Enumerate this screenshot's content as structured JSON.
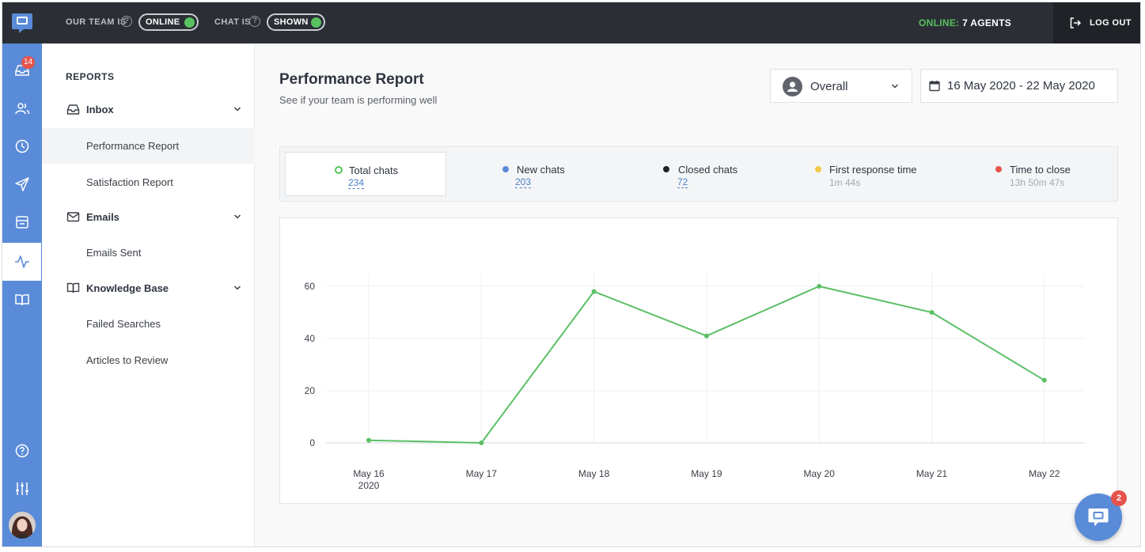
{
  "topbar": {
    "team_label": "OUR TEAM IS",
    "team_status": "ONLINE",
    "chat_label": "CHAT IS",
    "chat_status": "SHOWN",
    "online_key": "ONLINE:",
    "online_value": "7 AGENTS",
    "logout_label": "LOG OUT"
  },
  "rail": {
    "inbox_badge": "14",
    "items": [
      "inbox-icon",
      "users-icon",
      "clock-icon",
      "send-icon",
      "ticket-icon",
      "activity-icon",
      "book-icon",
      "help-icon",
      "sliders-icon"
    ],
    "active": "activity-icon"
  },
  "sidebar": {
    "title": "REPORTS",
    "groups": [
      {
        "label": "Inbox",
        "icon": "inbox-icon",
        "items": [
          "Performance Report",
          "Satisfaction Report"
        ]
      },
      {
        "label": "Emails",
        "icon": "mail-icon",
        "items": [
          "Emails Sent"
        ]
      },
      {
        "label": "Knowledge Base",
        "icon": "book-icon",
        "items": [
          "Failed Searches",
          "Articles to Review"
        ]
      }
    ],
    "active_item": "Performance Report"
  },
  "main": {
    "title": "Performance Report",
    "subtitle": "See if your team is performing well",
    "agent_select": "Overall",
    "date_range": "16 May 2020 - 22 May 2020"
  },
  "metrics": [
    {
      "label": "Total chats",
      "value": "234",
      "color": "#58c25f",
      "selected": true
    },
    {
      "label": "New chats",
      "value": "203",
      "color": "#5a8bd8",
      "selected": false
    },
    {
      "label": "Closed chats",
      "value": "72",
      "color": "#1f2227",
      "selected": false
    },
    {
      "label": "First response time",
      "value": "1m 44s",
      "color": "#f2c94c",
      "selected": false
    },
    {
      "label": "Time to close",
      "value": "13h 50m 47s",
      "color": "#e5534b",
      "selected": false
    }
  ],
  "chart_data": {
    "type": "line",
    "categories": [
      "May 16",
      "May 17",
      "May 18",
      "May 19",
      "May 20",
      "May 21",
      "May 22"
    ],
    "first_category_sub": "2020",
    "series": [
      {
        "values": [
          1,
          0,
          58,
          41,
          60,
          50,
          24
        ],
        "color": "#5cbf65"
      }
    ],
    "ylim": [
      0,
      60
    ],
    "yticks": [
      0,
      20,
      40,
      60
    ],
    "grid": true
  },
  "fab": {
    "badge": "2"
  }
}
